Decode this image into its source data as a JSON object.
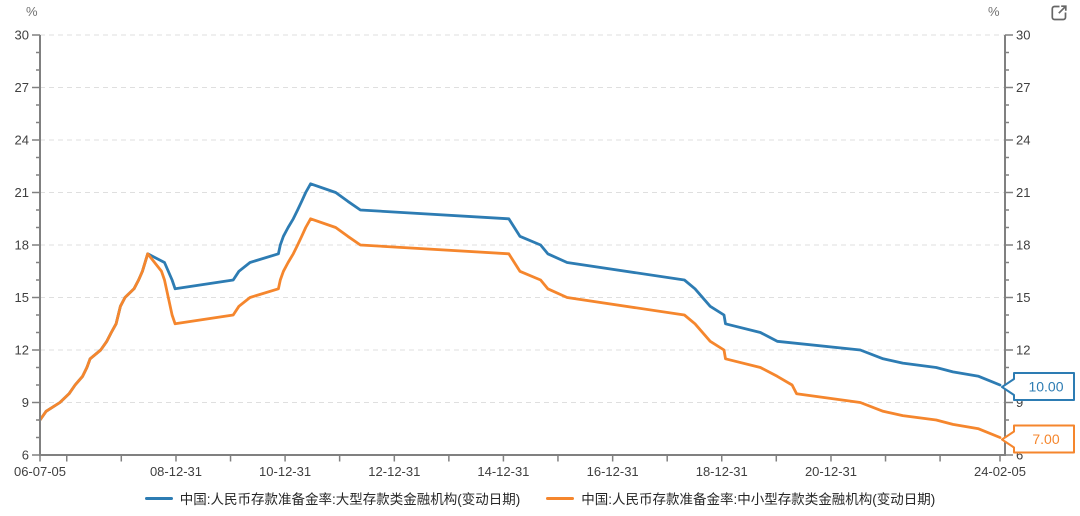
{
  "chart_data": {
    "type": "line",
    "unit": "%",
    "ylim": [
      6,
      30
    ],
    "ytick_major_step": 3,
    "ytick_minor_step": 1,
    "grid": "horizontal-dashed",
    "legend_position": "bottom",
    "x_range": [
      "2006-07-05",
      "2024-02-05"
    ],
    "x_ticks": [
      {
        "date": "2006-07-05",
        "label": "06-07-05"
      },
      {
        "date": "2006-12-31",
        "label": ""
      },
      {
        "date": "2007-12-31",
        "label": ""
      },
      {
        "date": "2008-12-31",
        "label": "08-12-31"
      },
      {
        "date": "2009-12-31",
        "label": ""
      },
      {
        "date": "2010-12-31",
        "label": "10-12-31"
      },
      {
        "date": "2011-12-31",
        "label": ""
      },
      {
        "date": "2012-12-31",
        "label": "12-12-31"
      },
      {
        "date": "2013-12-31",
        "label": ""
      },
      {
        "date": "2014-12-31",
        "label": "14-12-31"
      },
      {
        "date": "2015-12-31",
        "label": ""
      },
      {
        "date": "2016-12-31",
        "label": "16-12-31"
      },
      {
        "date": "2017-12-31",
        "label": ""
      },
      {
        "date": "2018-12-31",
        "label": "18-12-31"
      },
      {
        "date": "2019-12-31",
        "label": ""
      },
      {
        "date": "2020-12-31",
        "label": "20-12-31"
      },
      {
        "date": "2021-12-31",
        "label": ""
      },
      {
        "date": "2022-12-31",
        "label": ""
      },
      {
        "date": "2024-02-05",
        "label": "24-02-05"
      }
    ],
    "series": [
      {
        "name": "中国:人民币存款准备金率:大型存款类金融机构(变动日期)",
        "color": "#2d7cb3",
        "end_label": "10.00",
        "points": [
          [
            "2006-07-05",
            8.0
          ],
          [
            "2006-08-15",
            8.5
          ],
          [
            "2006-11-15",
            9.0
          ],
          [
            "2007-01-15",
            9.5
          ],
          [
            "2007-02-25",
            10.0
          ],
          [
            "2007-04-16",
            10.5
          ],
          [
            "2007-05-15",
            11.0
          ],
          [
            "2007-06-05",
            11.5
          ],
          [
            "2007-08-15",
            12.0
          ],
          [
            "2007-09-25",
            12.5
          ],
          [
            "2007-10-25",
            13.0
          ],
          [
            "2007-11-26",
            13.5
          ],
          [
            "2007-12-25",
            14.5
          ],
          [
            "2008-01-25",
            15.0
          ],
          [
            "2008-03-25",
            15.5
          ],
          [
            "2008-04-25",
            16.0
          ],
          [
            "2008-05-20",
            16.5
          ],
          [
            "2008-06-25",
            17.5
          ],
          [
            "2008-10-15",
            17.0
          ],
          [
            "2008-12-05",
            16.0
          ],
          [
            "2008-12-25",
            15.5
          ],
          [
            "2010-01-18",
            16.0
          ],
          [
            "2010-02-25",
            16.5
          ],
          [
            "2010-05-10",
            17.0
          ],
          [
            "2010-11-16",
            17.5
          ],
          [
            "2010-11-29",
            18.0
          ],
          [
            "2010-12-20",
            18.5
          ],
          [
            "2011-01-20",
            19.0
          ],
          [
            "2011-02-24",
            19.5
          ],
          [
            "2011-03-25",
            20.0
          ],
          [
            "2011-04-21",
            20.5
          ],
          [
            "2011-05-18",
            21.0
          ],
          [
            "2011-06-20",
            21.5
          ],
          [
            "2011-12-05",
            21.0
          ],
          [
            "2012-02-24",
            20.5
          ],
          [
            "2012-05-18",
            20.0
          ],
          [
            "2015-02-05",
            19.5
          ],
          [
            "2015-04-20",
            18.5
          ],
          [
            "2015-09-06",
            18.0
          ],
          [
            "2015-10-24",
            17.5
          ],
          [
            "2016-03-01",
            17.0
          ],
          [
            "2018-04-25",
            16.0
          ],
          [
            "2018-07-05",
            15.5
          ],
          [
            "2018-10-15",
            14.5
          ],
          [
            "2019-01-15",
            14.0
          ],
          [
            "2019-01-25",
            13.5
          ],
          [
            "2019-09-16",
            13.0
          ],
          [
            "2020-01-06",
            12.5
          ],
          [
            "2021-07-15",
            12.0
          ],
          [
            "2021-12-15",
            11.5
          ],
          [
            "2022-04-25",
            11.25
          ],
          [
            "2022-12-05",
            11.0
          ],
          [
            "2023-03-27",
            10.75
          ],
          [
            "2023-09-15",
            10.5
          ],
          [
            "2024-02-05",
            10.0
          ]
        ]
      },
      {
        "name": "中国:人民币存款准备金率:中小型存款类金融机构(变动日期)",
        "color": "#f5862d",
        "end_label": "7.00",
        "points": [
          [
            "2006-07-05",
            8.0
          ],
          [
            "2006-08-15",
            8.5
          ],
          [
            "2006-11-15",
            9.0
          ],
          [
            "2007-01-15",
            9.5
          ],
          [
            "2007-02-25",
            10.0
          ],
          [
            "2007-04-16",
            10.5
          ],
          [
            "2007-05-15",
            11.0
          ],
          [
            "2007-06-05",
            11.5
          ],
          [
            "2007-08-15",
            12.0
          ],
          [
            "2007-09-25",
            12.5
          ],
          [
            "2007-10-25",
            13.0
          ],
          [
            "2007-11-26",
            13.5
          ],
          [
            "2007-12-25",
            14.5
          ],
          [
            "2008-01-25",
            15.0
          ],
          [
            "2008-03-25",
            15.5
          ],
          [
            "2008-04-25",
            16.0
          ],
          [
            "2008-05-20",
            16.5
          ],
          [
            "2008-06-25",
            17.5
          ],
          [
            "2008-09-25",
            16.5
          ],
          [
            "2008-10-15",
            16.0
          ],
          [
            "2008-12-05",
            14.0
          ],
          [
            "2008-12-25",
            13.5
          ],
          [
            "2010-01-18",
            14.0
          ],
          [
            "2010-02-25",
            14.5
          ],
          [
            "2010-05-10",
            15.0
          ],
          [
            "2010-11-16",
            15.5
          ],
          [
            "2010-11-29",
            16.0
          ],
          [
            "2010-12-20",
            16.5
          ],
          [
            "2011-01-20",
            17.0
          ],
          [
            "2011-02-24",
            17.5
          ],
          [
            "2011-03-25",
            18.0
          ],
          [
            "2011-04-21",
            18.5
          ],
          [
            "2011-05-18",
            19.0
          ],
          [
            "2011-06-20",
            19.5
          ],
          [
            "2011-12-05",
            19.0
          ],
          [
            "2012-02-24",
            18.5
          ],
          [
            "2012-05-18",
            18.0
          ],
          [
            "2015-02-05",
            17.5
          ],
          [
            "2015-04-20",
            16.5
          ],
          [
            "2015-09-06",
            16.0
          ],
          [
            "2015-10-24",
            15.5
          ],
          [
            "2016-03-01",
            15.0
          ],
          [
            "2018-04-25",
            14.0
          ],
          [
            "2018-07-05",
            13.5
          ],
          [
            "2018-10-15",
            12.5
          ],
          [
            "2019-01-15",
            12.0
          ],
          [
            "2019-01-25",
            11.5
          ],
          [
            "2019-09-16",
            11.0
          ],
          [
            "2020-01-06",
            10.5
          ],
          [
            "2020-04-15",
            10.0
          ],
          [
            "2020-05-15",
            9.5
          ],
          [
            "2021-07-15",
            9.0
          ],
          [
            "2021-12-15",
            8.5
          ],
          [
            "2022-04-25",
            8.25
          ],
          [
            "2022-12-05",
            8.0
          ],
          [
            "2023-03-27",
            7.75
          ],
          [
            "2023-09-15",
            7.5
          ],
          [
            "2024-02-05",
            7.0
          ]
        ]
      }
    ]
  }
}
